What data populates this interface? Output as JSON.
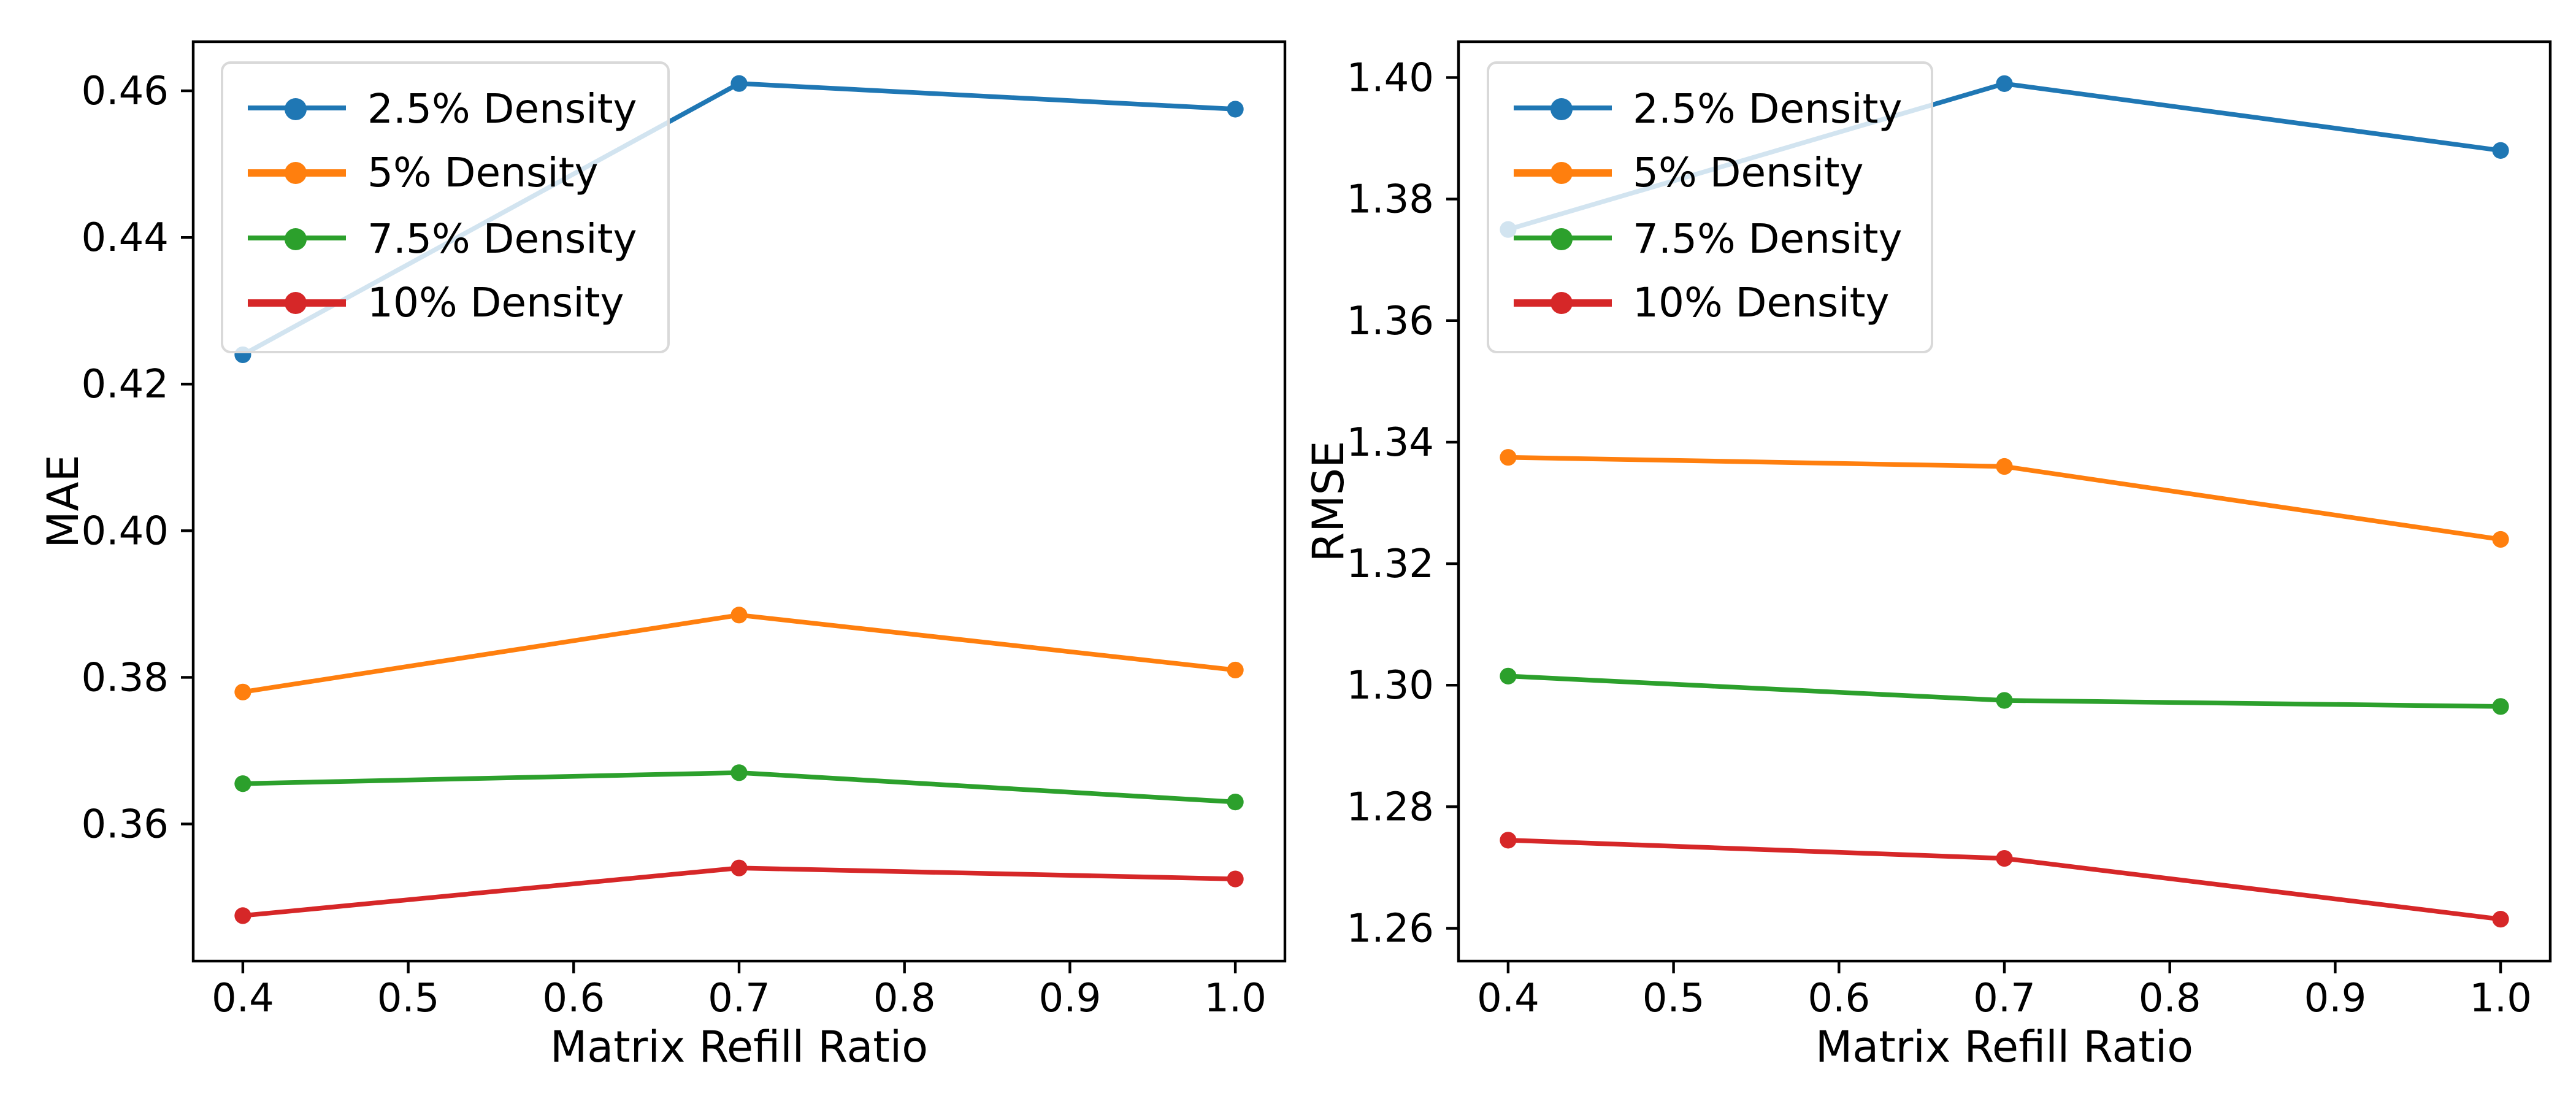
{
  "figure": {
    "background": "#ffffff",
    "text_color": "#000000",
    "spine_color": "#000000"
  },
  "chart_data": [
    {
      "id": "mae",
      "type": "line",
      "title": "",
      "xlabel": "Matrix Refill Ratio",
      "ylabel": "MAE",
      "x": [
        0.4,
        0.7,
        1.0
      ],
      "xlim": [
        0.37,
        1.03
      ],
      "ylim": [
        0.3413,
        0.4667
      ],
      "grid": false,
      "xticks": {
        "values": [
          0.4,
          0.5,
          0.6,
          0.7,
          0.8,
          0.9,
          1.0
        ],
        "labels": [
          "0.4",
          "0.5",
          "0.6",
          "0.7",
          "0.8",
          "0.9",
          "1.0"
        ]
      },
      "yticks": {
        "values": [
          0.36,
          0.38,
          0.4,
          0.42,
          0.44,
          0.46
        ],
        "labels": [
          "0.36",
          "0.38",
          "0.40",
          "0.42",
          "0.44",
          "0.46"
        ]
      },
      "legend": {
        "position": "upper-left",
        "frame_alpha": 0.8,
        "border_color": "#d9d9d9"
      },
      "series": [
        {
          "name": "2.5% Density",
          "color": "#1f77b4",
          "values": [
            0.424,
            0.461,
            0.4575
          ]
        },
        {
          "name": "5% Density",
          "color": "#ff7f0e",
          "values": [
            0.378,
            0.3885,
            0.381
          ]
        },
        {
          "name": "7.5% Density",
          "color": "#2ca02c",
          "values": [
            0.3655,
            0.367,
            0.363
          ]
        },
        {
          "name": "10% Density",
          "color": "#d62728",
          "values": [
            0.3475,
            0.354,
            0.3525
          ]
        }
      ]
    },
    {
      "id": "rmse",
      "type": "line",
      "title": "",
      "xlabel": "Matrix Refill Ratio",
      "ylabel": "RMSE",
      "x": [
        0.4,
        0.7,
        1.0
      ],
      "xlim": [
        0.37,
        1.03
      ],
      "ylim": [
        1.2546,
        1.4059
      ],
      "grid": false,
      "xticks": {
        "values": [
          0.4,
          0.5,
          0.6,
          0.7,
          0.8,
          0.9,
          1.0
        ],
        "labels": [
          "0.4",
          "0.5",
          "0.6",
          "0.7",
          "0.8",
          "0.9",
          "1.0"
        ]
      },
      "yticks": {
        "values": [
          1.26,
          1.28,
          1.3,
          1.32,
          1.34,
          1.36,
          1.38,
          1.4
        ],
        "labels": [
          "1.26",
          "1.28",
          "1.30",
          "1.32",
          "1.34",
          "1.36",
          "1.38",
          "1.40"
        ]
      },
      "legend": {
        "position": "upper-left",
        "frame_alpha": 0.8,
        "border_color": "#d9d9d9"
      },
      "series": [
        {
          "name": "2.5% Density",
          "color": "#1f77b4",
          "values": [
            1.375,
            1.399,
            1.388
          ]
        },
        {
          "name": "5% Density",
          "color": "#ff7f0e",
          "values": [
            1.3375,
            1.336,
            1.324
          ]
        },
        {
          "name": "7.5% Density",
          "color": "#2ca02c",
          "values": [
            1.3015,
            1.2975,
            1.2965
          ]
        },
        {
          "name": "10% Density",
          "color": "#d62728",
          "values": [
            1.2745,
            1.2715,
            1.2615
          ]
        }
      ]
    }
  ]
}
